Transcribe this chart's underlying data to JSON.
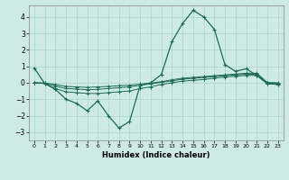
{
  "xlabel": "Humidex (Indice chaleur)",
  "background_color": "#ceeae4",
  "grid_color": "#aad4cc",
  "line_color": "#1a6b5a",
  "xlim": [
    -0.5,
    23.5
  ],
  "ylim": [
    -3.5,
    4.7
  ],
  "yticks": [
    -3,
    -2,
    -1,
    0,
    1,
    2,
    3,
    4
  ],
  "xticks": [
    0,
    1,
    2,
    3,
    4,
    5,
    6,
    7,
    8,
    9,
    10,
    11,
    12,
    13,
    14,
    15,
    16,
    17,
    18,
    19,
    20,
    21,
    22,
    23
  ],
  "series1_x": [
    0,
    1,
    2,
    3,
    4,
    5,
    6,
    7,
    8,
    9,
    10,
    11,
    12,
    13,
    14,
    15,
    16,
    17,
    18,
    19,
    20,
    21,
    22,
    23
  ],
  "series1_y": [
    0.9,
    -0.05,
    -0.4,
    -1.0,
    -1.25,
    -1.7,
    -1.1,
    -2.0,
    -2.75,
    -2.35,
    -0.15,
    0.0,
    0.5,
    2.5,
    3.6,
    4.4,
    4.0,
    3.25,
    1.1,
    0.7,
    0.85,
    0.45,
    -0.05,
    -0.1
  ],
  "series2_x": [
    0,
    1,
    2,
    3,
    4,
    5,
    6,
    7,
    8,
    9,
    10,
    11,
    12,
    13,
    14,
    15,
    16,
    17,
    18,
    19,
    20,
    21,
    22,
    23
  ],
  "series2_y": [
    0.0,
    -0.05,
    -0.35,
    -0.55,
    -0.6,
    -0.65,
    -0.65,
    -0.6,
    -0.55,
    -0.5,
    -0.35,
    -0.25,
    -0.1,
    0.0,
    0.1,
    0.15,
    0.2,
    0.28,
    0.35,
    0.4,
    0.45,
    0.45,
    -0.05,
    -0.1
  ],
  "series3_x": [
    0,
    1,
    2,
    3,
    4,
    5,
    6,
    7,
    8,
    9,
    10,
    11,
    12,
    13,
    14,
    15,
    16,
    17,
    18,
    19,
    20,
    21,
    22,
    23
  ],
  "series3_y": [
    0.0,
    -0.02,
    -0.2,
    -0.35,
    -0.38,
    -0.42,
    -0.4,
    -0.35,
    -0.3,
    -0.25,
    -0.15,
    -0.07,
    0.03,
    0.12,
    0.22,
    0.27,
    0.32,
    0.38,
    0.43,
    0.48,
    0.52,
    0.52,
    0.0,
    -0.03
  ],
  "series4_x": [
    0,
    1,
    2,
    3,
    4,
    5,
    6,
    7,
    8,
    9,
    10,
    11,
    12,
    13,
    14,
    15,
    16,
    17,
    18,
    19,
    20,
    21,
    22,
    23
  ],
  "series4_y": [
    0.0,
    -0.02,
    -0.1,
    -0.22,
    -0.25,
    -0.28,
    -0.25,
    -0.22,
    -0.18,
    -0.15,
    -0.08,
    -0.02,
    0.07,
    0.18,
    0.28,
    0.33,
    0.38,
    0.43,
    0.48,
    0.53,
    0.58,
    0.58,
    0.02,
    0.0
  ]
}
